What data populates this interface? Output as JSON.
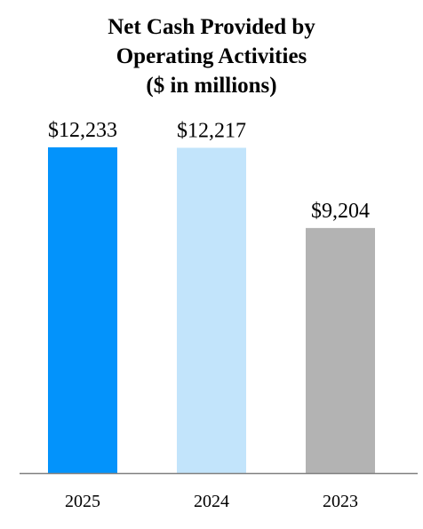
{
  "chart_data": {
    "type": "bar",
    "title_lines": [
      "Net Cash Provided by",
      "Operating Activities",
      "($ in millions)"
    ],
    "categories": [
      "2025",
      "2024",
      "2023"
    ],
    "values": [
      12233,
      12217,
      9204
    ],
    "value_labels": [
      "$12,233",
      "$12,217",
      "$9,204"
    ],
    "colors": [
      "#0393fb",
      "#c2e4fb",
      "#b3b3b3"
    ],
    "axis_color": "#808080",
    "ylim": [
      0,
      15000
    ],
    "grid": false,
    "legend": false,
    "xlabel": "",
    "ylabel": ""
  }
}
